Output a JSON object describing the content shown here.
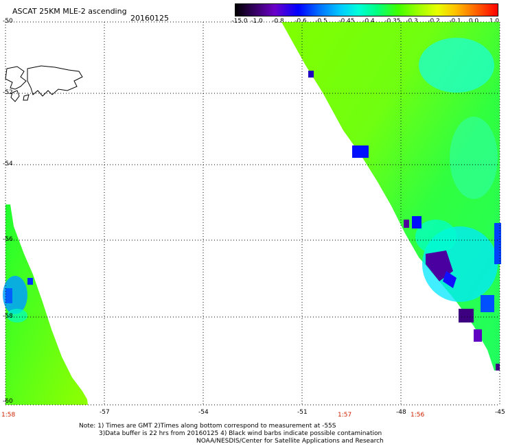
{
  "header": {
    "title": "ASCAT 25KM MLE-2 ascending",
    "date": "20160125"
  },
  "colorbar": {
    "labels": [
      "-15.0",
      "-1.0",
      "-0.8",
      "-0.6",
      "-0.5",
      "-0.45",
      "-0.4",
      "-0.35",
      "-0.3",
      "-0.2",
      "-0.1",
      "0.0",
      "1.0"
    ]
  },
  "map": {
    "lat_labels": [
      "-50",
      "-52",
      "-54",
      "-56",
      "-58",
      "-60"
    ],
    "lon_labels": [
      "-60",
      "-57",
      "-54",
      "-51",
      "-48",
      "-45"
    ],
    "time_labels": [
      "1:58",
      "1:57",
      "1:56"
    ]
  },
  "footer": {
    "note1": "Note: 1) Times are GMT 2)Times along bottom correspond to measurement at -55S",
    "note2": "3)Data buffer is 22 hrs from 20160125 4) Black wind barbs indicate possible contamination",
    "credit": "NOAA/NESDIS/Center for Satellite Applications and Research"
  }
}
